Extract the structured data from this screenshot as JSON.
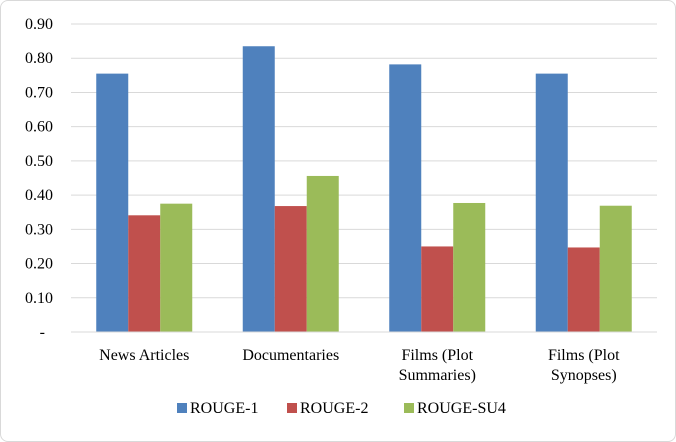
{
  "chart_data": {
    "type": "bar",
    "categories": [
      [
        "News Articles"
      ],
      [
        "Documentaries"
      ],
      [
        "Films (Plot",
        "Summaries)"
      ],
      [
        "Films (Plot",
        "Synopses)"
      ]
    ],
    "series": [
      {
        "name": "ROUGE-1",
        "color": "#4f81bd",
        "values": [
          0.755,
          0.835,
          0.782,
          0.755
        ]
      },
      {
        "name": "ROUGE-2",
        "color": "#c0504d",
        "values": [
          0.341,
          0.368,
          0.25,
          0.247
        ]
      },
      {
        "name": "ROUGE-SU4",
        "color": "#9bbb59",
        "values": [
          0.375,
          0.456,
          0.377,
          0.369
        ]
      }
    ],
    "y_ticks": [
      "-",
      "0.10",
      "0.20",
      "0.30",
      "0.40",
      "0.50",
      "0.60",
      "0.70",
      "0.80",
      "0.90"
    ],
    "ylim": [
      0,
      0.9
    ],
    "grid": true,
    "legend_position": "bottom",
    "title": "",
    "xlabel": "",
    "ylabel": ""
  }
}
